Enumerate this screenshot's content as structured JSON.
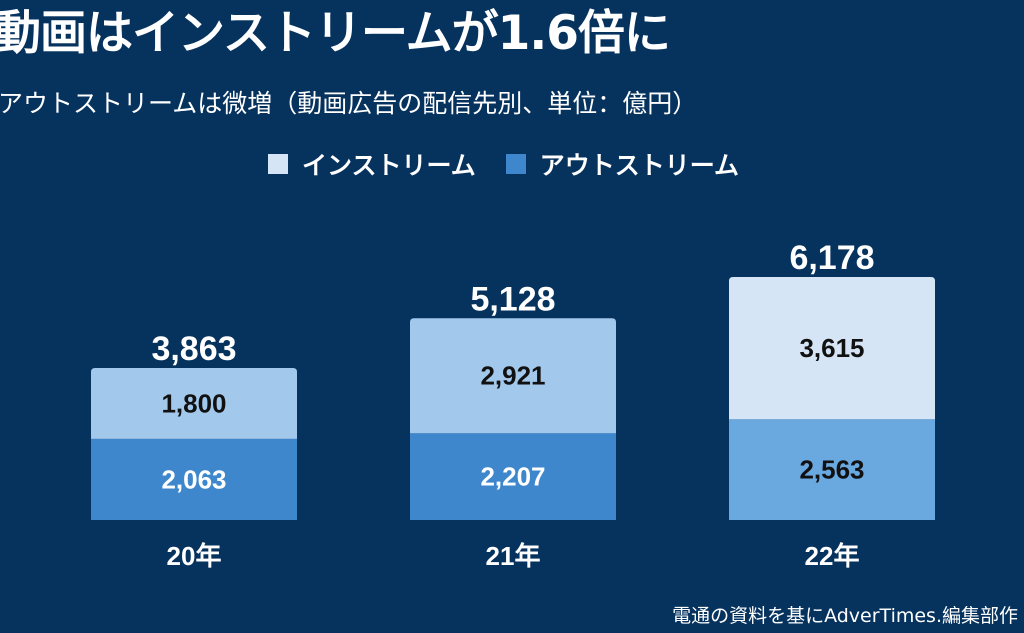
{
  "header": {
    "title": "動画はインストリームが1.6倍に",
    "subtitle": "アウトストリームは微増（動画広告の配信先別、単位：億円）"
  },
  "footer": {
    "source": "電通の資料を基にAdverTimes.編集部作"
  },
  "legend": [
    {
      "label": "インストリーム",
      "color": "#d6e5f5"
    },
    {
      "label": "アウトストリーム",
      "color": "#3f87cc"
    }
  ],
  "chart_data": {
    "type": "bar",
    "stacked": true,
    "categories": [
      "20年",
      "21年",
      "22年"
    ],
    "series": [
      {
        "name": "アウトストリーム",
        "values": [
          2063,
          2207,
          2563
        ],
        "labels": [
          "2,063",
          "2,207",
          "2,563"
        ],
        "colors": [
          "#3f87cc",
          "#3f87cc",
          "#6aa8e0"
        ],
        "label_colors": [
          "#ffffff",
          "#ffffff",
          "#111111"
        ]
      },
      {
        "name": "インストリーム",
        "values": [
          1800,
          2921,
          3615
        ],
        "labels": [
          "1,800",
          "2,921",
          "3,615"
        ],
        "colors": [
          "#a2c8ec",
          "#a2c8ec",
          "#d6e5f5"
        ],
        "label_colors": [
          "#111111",
          "#111111",
          "#111111"
        ]
      }
    ],
    "totals": [
      3863,
      5128,
      6178
    ],
    "total_labels": [
      "3,863",
      "5,128",
      "6,178"
    ],
    "ylim": [
      0,
      6178
    ],
    "grid": false,
    "legend_position": "top-center"
  }
}
